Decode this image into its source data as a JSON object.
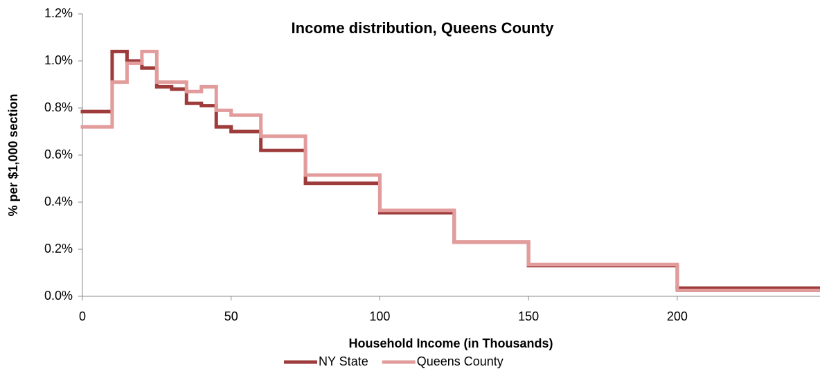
{
  "chart_data": {
    "type": "step",
    "title": "Income distribution, Queens County",
    "x_label": "Household  Income  (in Thousands)",
    "y_label": "% per $1,000 section",
    "x": [
      0,
      10,
      15,
      20,
      25,
      30,
      35,
      40,
      45,
      50,
      60,
      75,
      100,
      125,
      150,
      200
    ],
    "series": [
      {
        "name": "NY State",
        "color": "#9e3b3b",
        "values": [
          0.785,
          1.04,
          1.0,
          0.97,
          0.89,
          0.88,
          0.82,
          0.81,
          0.72,
          0.7,
          0.62,
          0.48,
          0.355,
          0.23,
          0.13,
          0.035
        ]
      },
      {
        "name": "Queens County",
        "color": "#e39c9c",
        "values": [
          0.72,
          0.91,
          0.99,
          1.04,
          0.91,
          0.91,
          0.87,
          0.89,
          0.79,
          0.77,
          0.68,
          0.515,
          0.365,
          0.23,
          0.135,
          0.025
        ]
      }
    ],
    "xlim": [
      0,
      248
    ],
    "ylim": [
      0,
      1.2
    ],
    "xticks": [
      0,
      50,
      100,
      150,
      200
    ],
    "yticks": [
      {
        "value": 0,
        "label": "0.0%"
      },
      {
        "value": 0.2,
        "label": "0.2%"
      },
      {
        "value": 0.4,
        "label": "0.4%"
      },
      {
        "value": 0.6,
        "label": "0.6%"
      },
      {
        "value": 0.8,
        "label": "0.8%"
      },
      {
        "value": 1.0,
        "label": "1.0%"
      },
      {
        "value": 1.2,
        "label": "1.2%"
      }
    ],
    "legend": "bottom",
    "grid": false
  }
}
